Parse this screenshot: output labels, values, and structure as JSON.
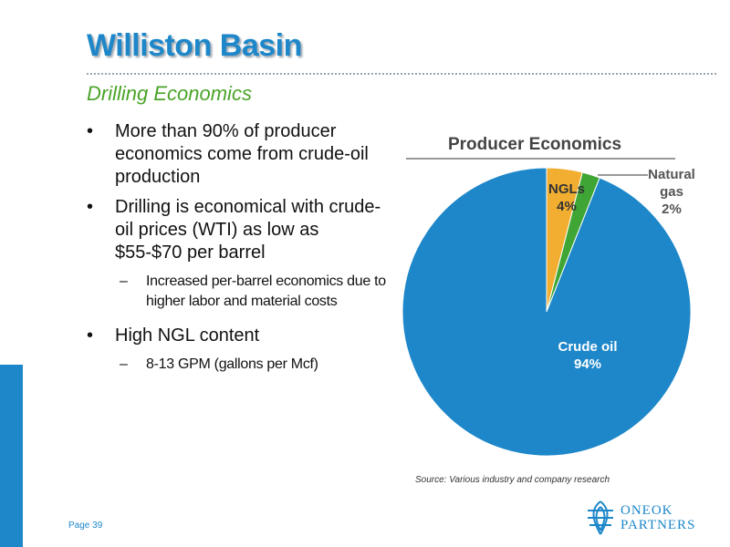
{
  "slide": {
    "title": "Williston Basin",
    "subtitle": "Drilling Economics",
    "page_number": "Page 39",
    "source": "Source: Various industry and company research",
    "logo": {
      "line1": "ONEOK",
      "line2": "PARTNERS",
      "icon": "oneok-flame-icon"
    }
  },
  "bullets": [
    {
      "text": "More than 90% of producer economics come from crude-oil production",
      "sub": []
    },
    {
      "text": "Drilling is economical with crude-oil prices (WTI) as low as $55-$70 per barrel",
      "sub": [
        "Increased per-barrel economics due to higher labor and material costs"
      ]
    },
    {
      "text": "High NGL content",
      "sub": [
        "8-13 GPM (gallons per Mcf)"
      ]
    }
  ],
  "symbols": {
    "bullet": "•",
    "dash": "–"
  },
  "colors": {
    "brand_blue": "#1d87c9",
    "subtitle_green": "#4aa328"
  },
  "chart_data": {
    "type": "pie",
    "title": "Producer Economics",
    "series": [
      {
        "name": "NGLs",
        "value": 4,
        "label": "4%",
        "color": "#f2ae30"
      },
      {
        "name": "Natural gas",
        "value": 2,
        "label": "2%",
        "color": "#3fa535"
      },
      {
        "name": "Crude oil",
        "value": 94,
        "label": "94%",
        "color": "#1d87c9"
      }
    ],
    "legend": "none"
  }
}
